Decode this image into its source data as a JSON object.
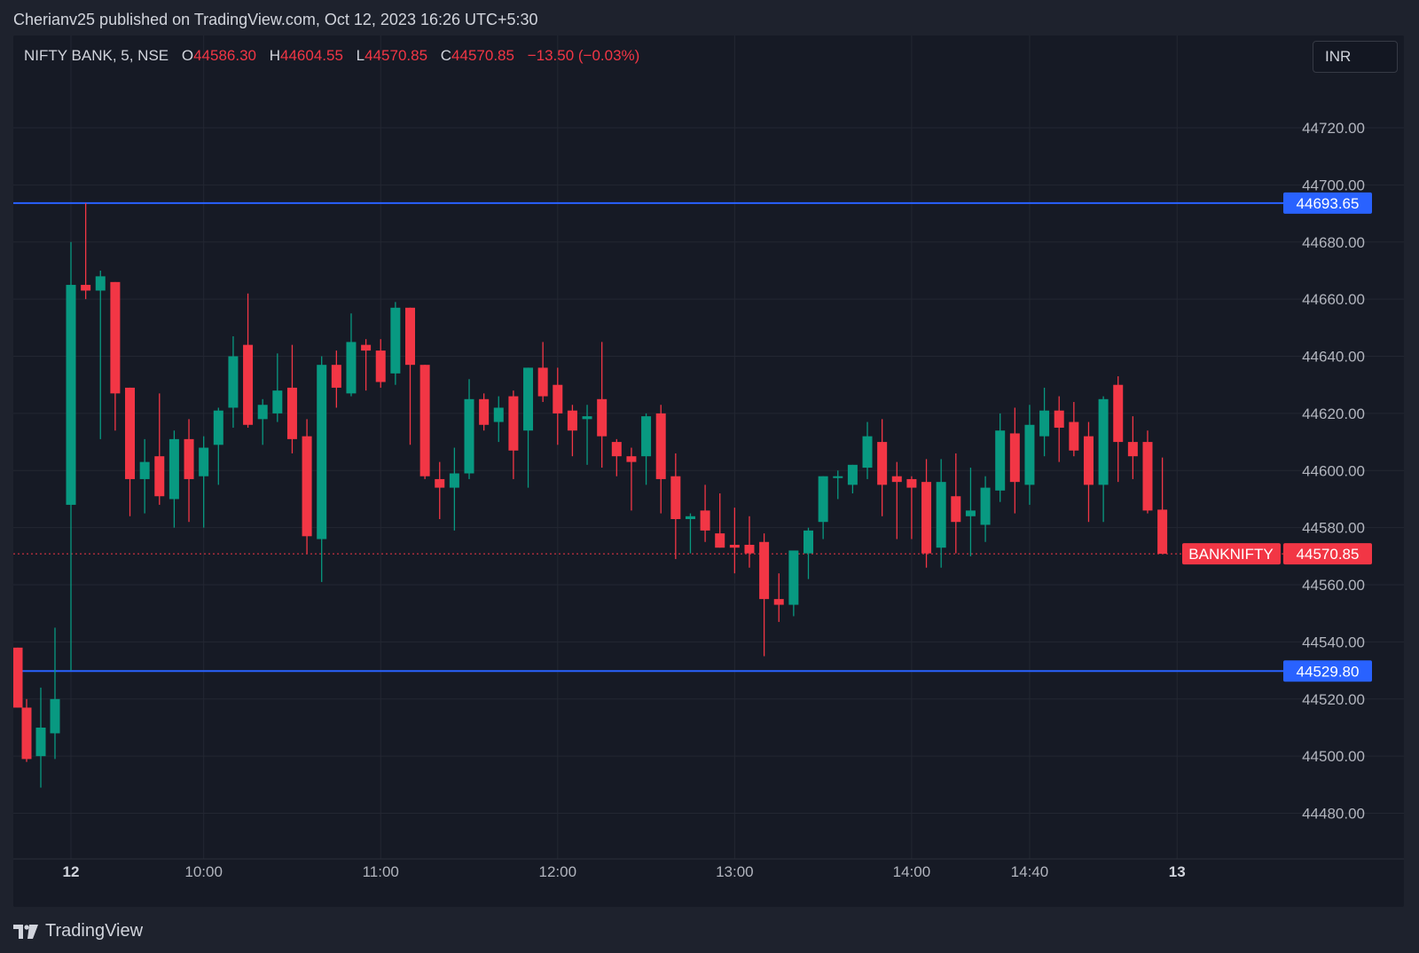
{
  "header": {
    "publish_text": "Cherianv25 published on TradingView.com, Oct 12, 2023 16:26 UTC+5:30"
  },
  "legend": {
    "symbol": "NIFTY BANK, 5, NSE",
    "open_label": "O",
    "open_value": "44586.30",
    "high_label": "H",
    "high_value": "44604.55",
    "low_label": "L",
    "low_value": "44570.85",
    "close_label": "C",
    "close_value": "44570.85",
    "change": "−13.50 (−0.03%)"
  },
  "currency_button": "INR",
  "footer": {
    "brand": "TradingView",
    "logo_icon": "tradingview-logo-icon"
  },
  "colors": {
    "up": "#089981",
    "down": "#f23645",
    "level_line": "#2962ff",
    "grid": "#232732",
    "axis_text": "#b2b5be"
  },
  "chart_data": {
    "type": "candlestick",
    "symbol": "NIFTY BANK",
    "interval": "5",
    "exchange": "NSE",
    "currency": "INR",
    "ylim": [
      44460,
      44740
    ],
    "y_ticks": [
      "44720.00",
      "44700.00",
      "44680.00",
      "44660.00",
      "44640.00",
      "44620.00",
      "44600.00",
      "44580.00",
      "44560.00",
      "44540.00",
      "44520.00",
      "44500.00",
      "44480.00"
    ],
    "x_ticks": [
      {
        "label": "12",
        "bar": 0,
        "bold": true
      },
      {
        "label": "10:00",
        "bar": 9
      },
      {
        "label": "11:00",
        "bar": 21
      },
      {
        "label": "12:00",
        "bar": 33
      },
      {
        "label": "13:00",
        "bar": 45
      },
      {
        "label": "14:00",
        "bar": 57
      },
      {
        "label": "14:40",
        "bar": 65
      },
      {
        "label": "13",
        "bar": 75,
        "bold": true
      }
    ],
    "horizontal_lines": [
      {
        "value": 44693.65,
        "label": "44693.65"
      },
      {
        "value": 44529.8,
        "label": "44529.80"
      }
    ],
    "last_price": {
      "symbol_label": "BANKNIFTY",
      "value": 44570.85,
      "label": "44570.85"
    },
    "prev_session_candles": [
      {
        "o": 44538,
        "h": 44538,
        "l": 44517,
        "c": 44517
      },
      {
        "o": 44517,
        "h": 44520,
        "l": 44498,
        "c": 44499
      },
      {
        "o": 44500,
        "h": 44524,
        "l": 44489,
        "c": 44510
      },
      {
        "o": 44508,
        "h": 44545,
        "l": 44499,
        "c": 44520
      }
    ],
    "candles": [
      {
        "o": 44588,
        "h": 44680,
        "l": 44530,
        "c": 44665
      },
      {
        "o": 44665,
        "h": 44693.65,
        "l": 44660,
        "c": 44663
      },
      {
        "o": 44663,
        "h": 44670,
        "l": 44611,
        "c": 44668
      },
      {
        "o": 44666,
        "h": 44666,
        "l": 44614,
        "c": 44627
      },
      {
        "o": 44629,
        "h": 44629,
        "l": 44584,
        "c": 44597
      },
      {
        "o": 44597,
        "h": 44611,
        "l": 44585,
        "c": 44603
      },
      {
        "o": 44605,
        "h": 44627,
        "l": 44588,
        "c": 44591
      },
      {
        "o": 44590,
        "h": 44614,
        "l": 44580,
        "c": 44611
      },
      {
        "o": 44611,
        "h": 44618,
        "l": 44582,
        "c": 44597
      },
      {
        "o": 44598,
        "h": 44612,
        "l": 44580,
        "c": 44608
      },
      {
        "o": 44609,
        "h": 44622,
        "l": 44595,
        "c": 44621
      },
      {
        "o": 44622,
        "h": 44647,
        "l": 44615,
        "c": 44640
      },
      {
        "o": 44644,
        "h": 44662,
        "l": 44615,
        "c": 44616
      },
      {
        "o": 44618,
        "h": 44625,
        "l": 44609,
        "c": 44623
      },
      {
        "o": 44620,
        "h": 44641,
        "l": 44617,
        "c": 44628
      },
      {
        "o": 44629,
        "h": 44644,
        "l": 44606,
        "c": 44611
      },
      {
        "o": 44612,
        "h": 44618,
        "l": 44571,
        "c": 44577
      },
      {
        "o": 44576,
        "h": 44640,
        "l": 44561,
        "c": 44637
      },
      {
        "o": 44637,
        "h": 44642,
        "l": 44622,
        "c": 44629
      },
      {
        "o": 44627,
        "h": 44655,
        "l": 44626,
        "c": 44645
      },
      {
        "o": 44644,
        "h": 44646,
        "l": 44628,
        "c": 44642
      },
      {
        "o": 44642,
        "h": 44646,
        "l": 44629,
        "c": 44631
      },
      {
        "o": 44634,
        "h": 44659,
        "l": 44630,
        "c": 44657
      },
      {
        "o": 44657,
        "h": 44657,
        "l": 44609,
        "c": 44637
      },
      {
        "o": 44637,
        "h": 44637,
        "l": 44597,
        "c": 44598
      },
      {
        "o": 44597,
        "h": 44603,
        "l": 44583,
        "c": 44594
      },
      {
        "o": 44594,
        "h": 44608,
        "l": 44579,
        "c": 44599
      },
      {
        "o": 44599,
        "h": 44632,
        "l": 44597,
        "c": 44625
      },
      {
        "o": 44625,
        "h": 44627,
        "l": 44614,
        "c": 44616
      },
      {
        "o": 44617,
        "h": 44626,
        "l": 44610,
        "c": 44622
      },
      {
        "o": 44626,
        "h": 44628,
        "l": 44597,
        "c": 44607
      },
      {
        "o": 44614,
        "h": 44636,
        "l": 44594,
        "c": 44636
      },
      {
        "o": 44636,
        "h": 44645,
        "l": 44624,
        "c": 44626
      },
      {
        "o": 44630,
        "h": 44636,
        "l": 44609,
        "c": 44620
      },
      {
        "o": 44621,
        "h": 44623,
        "l": 44605,
        "c": 44614
      },
      {
        "o": 44618,
        "h": 44623,
        "l": 44602,
        "c": 44619
      },
      {
        "o": 44625,
        "h": 44645,
        "l": 44601,
        "c": 44612
      },
      {
        "o": 44610,
        "h": 44611,
        "l": 44598,
        "c": 44605
      },
      {
        "o": 44605,
        "h": 44608,
        "l": 44586,
        "c": 44603
      },
      {
        "o": 44605,
        "h": 44620,
        "l": 44595,
        "c": 44619
      },
      {
        "o": 44620,
        "h": 44623,
        "l": 44585,
        "c": 44597
      },
      {
        "o": 44598,
        "h": 44606,
        "l": 44569,
        "c": 44583
      },
      {
        "o": 44583,
        "h": 44585,
        "l": 44571,
        "c": 44584
      },
      {
        "o": 44586,
        "h": 44595,
        "l": 44575,
        "c": 44579
      },
      {
        "o": 44578,
        "h": 44592,
        "l": 44573,
        "c": 44573
      },
      {
        "o": 44574,
        "h": 44587,
        "l": 44564,
        "c": 44573
      },
      {
        "o": 44574,
        "h": 44584,
        "l": 44566,
        "c": 44571
      },
      {
        "o": 44575,
        "h": 44578,
        "l": 44535,
        "c": 44555
      },
      {
        "o": 44555,
        "h": 44564,
        "l": 44547,
        "c": 44553
      },
      {
        "o": 44553,
        "h": 44570,
        "l": 44549,
        "c": 44572
      },
      {
        "o": 44571,
        "h": 44580,
        "l": 44562,
        "c": 44579
      },
      {
        "o": 44582,
        "h": 44598,
        "l": 44576,
        "c": 44598
      },
      {
        "o": 44598,
        "h": 44600,
        "l": 44590,
        "c": 44598
      },
      {
        "o": 44595,
        "h": 44602,
        "l": 44592,
        "c": 44602
      },
      {
        "o": 44601,
        "h": 44617,
        "l": 44597,
        "c": 44612
      },
      {
        "o": 44610,
        "h": 44618,
        "l": 44584,
        "c": 44595
      },
      {
        "o": 44598,
        "h": 44603,
        "l": 44576,
        "c": 44596
      },
      {
        "o": 44597,
        "h": 44598,
        "l": 44576,
        "c": 44594
      },
      {
        "o": 44596,
        "h": 44604,
        "l": 44566,
        "c": 44571
      },
      {
        "o": 44573,
        "h": 44604,
        "l": 44566,
        "c": 44596
      },
      {
        "o": 44591,
        "h": 44606,
        "l": 44571,
        "c": 44582
      },
      {
        "o": 44584,
        "h": 44601,
        "l": 44570,
        "c": 44586
      },
      {
        "o": 44581,
        "h": 44598,
        "l": 44575,
        "c": 44594
      },
      {
        "o": 44593,
        "h": 44620,
        "l": 44589,
        "c": 44614
      },
      {
        "o": 44613,
        "h": 44622,
        "l": 44585,
        "c": 44596
      },
      {
        "o": 44595,
        "h": 44623,
        "l": 44588,
        "c": 44616
      },
      {
        "o": 44612,
        "h": 44629,
        "l": 44605,
        "c": 44621
      },
      {
        "o": 44621,
        "h": 44626,
        "l": 44603,
        "c": 44615
      },
      {
        "o": 44617,
        "h": 44624,
        "l": 44605,
        "c": 44607
      },
      {
        "o": 44612,
        "h": 44617,
        "l": 44582,
        "c": 44595
      },
      {
        "o": 44595,
        "h": 44626,
        "l": 44582,
        "c": 44625
      },
      {
        "o": 44630,
        "h": 44633,
        "l": 44596,
        "c": 44610
      },
      {
        "o": 44610,
        "h": 44619,
        "l": 44597,
        "c": 44605
      },
      {
        "o": 44610,
        "h": 44614,
        "l": 44585,
        "c": 44586
      },
      {
        "o": 44586.3,
        "h": 44604.55,
        "l": 44570.85,
        "c": 44570.85
      }
    ]
  }
}
